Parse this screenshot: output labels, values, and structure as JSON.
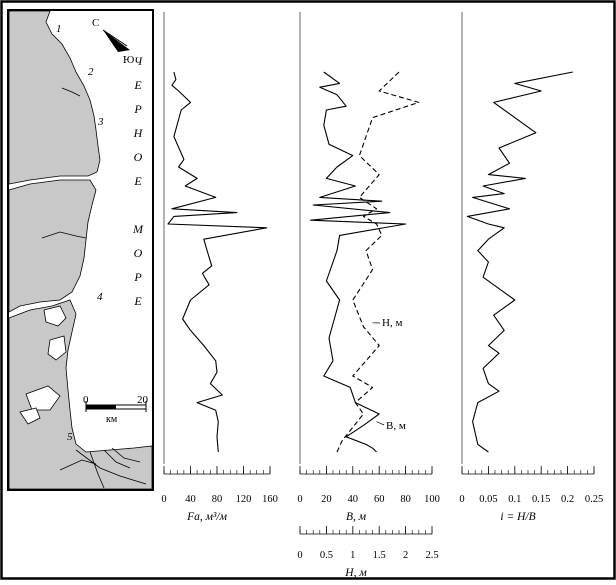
{
  "page_border": true,
  "map": {
    "compass_n": "С",
    "compass_s": "Ю",
    "sea_label": "ЧЕРНОЕ МОРЕ",
    "point_labels": [
      "1",
      "2",
      "3",
      "4",
      "5"
    ],
    "scale_start": "0",
    "scale_end": "20",
    "scale_unit": "км",
    "land_color": "#c8c8c8",
    "sea_color": "#ffffff"
  },
  "chart_data": [
    {
      "type": "line",
      "xlabel": "Fa, м³/м",
      "xlim": [
        0,
        160
      ],
      "xticks": [
        0,
        40,
        80,
        120,
        160
      ],
      "tick_labels": [
        "0",
        "20",
        "40",
        "60",
        "80",
        "100",
        "120",
        "140",
        "160"
      ],
      "y_range": [
        0,
        1
      ],
      "series": [
        {
          "style": "solid",
          "points": [
            [
              15,
              0.0
            ],
            [
              18,
              0.02
            ],
            [
              12,
              0.035
            ],
            [
              22,
              0.05
            ],
            [
              40,
              0.08
            ],
            [
              26,
              0.1
            ],
            [
              15,
              0.17
            ],
            [
              30,
              0.23
            ],
            [
              22,
              0.25
            ],
            [
              50,
              0.28
            ],
            [
              32,
              0.3
            ],
            [
              78,
              0.33
            ],
            [
              12,
              0.36
            ],
            [
              110,
              0.37
            ],
            [
              15,
              0.38
            ],
            [
              6,
              0.4
            ],
            [
              155,
              0.41
            ],
            [
              60,
              0.44
            ],
            [
              65,
              0.47
            ],
            [
              72,
              0.51
            ],
            [
              58,
              0.53
            ],
            [
              68,
              0.56
            ],
            [
              40,
              0.6
            ],
            [
              28,
              0.65
            ],
            [
              40,
              0.68
            ],
            [
              60,
              0.72
            ],
            [
              78,
              0.76
            ],
            [
              80,
              0.79
            ],
            [
              70,
              0.82
            ],
            [
              88,
              0.85
            ],
            [
              50,
              0.87
            ],
            [
              78,
              0.89
            ],
            [
              82,
              0.92
            ],
            [
              80,
              0.96
            ],
            [
              82,
              1.0
            ]
          ]
        }
      ]
    },
    {
      "type": "line",
      "xlabel": "В, м",
      "xlabel2": "Н, м",
      "xlim": [
        0,
        100
      ],
      "xticks": [
        0,
        20,
        40,
        60,
        80,
        100
      ],
      "xlim2": [
        0,
        2.5
      ],
      "xticks2": [
        0,
        0.5,
        1,
        1.5,
        2,
        2.5
      ],
      "y_range": [
        0,
        1
      ],
      "series": [
        {
          "name": "В, м",
          "style": "solid",
          "points": [
            [
              18,
              0.0
            ],
            [
              30,
              0.03
            ],
            [
              15,
              0.04
            ],
            [
              28,
              0.06
            ],
            [
              35,
              0.09
            ],
            [
              20,
              0.1
            ],
            [
              18,
              0.14
            ],
            [
              22,
              0.19
            ],
            [
              40,
              0.22
            ],
            [
              28,
              0.25
            ],
            [
              20,
              0.28
            ],
            [
              42,
              0.3
            ],
            [
              15,
              0.33
            ],
            [
              62,
              0.34
            ],
            [
              10,
              0.35
            ],
            [
              68,
              0.37
            ],
            [
              8,
              0.39
            ],
            [
              80,
              0.4
            ],
            [
              30,
              0.43
            ],
            [
              28,
              0.47
            ],
            [
              20,
              0.55
            ],
            [
              30,
              0.6
            ],
            [
              22,
              0.7
            ],
            [
              25,
              0.76
            ],
            [
              18,
              0.8
            ],
            [
              38,
              0.83
            ],
            [
              42,
              0.87
            ],
            [
              60,
              0.9
            ],
            [
              48,
              0.93
            ],
            [
              35,
              0.96
            ],
            [
              50,
              0.98
            ],
            [
              55,
              0.99
            ],
            [
              58,
              1.0
            ]
          ]
        },
        {
          "name": "Н, м",
          "style": "dashed",
          "points": [
            [
              75,
              0.0
            ],
            [
              60,
              0.05
            ],
            [
              90,
              0.08
            ],
            [
              55,
              0.12
            ],
            [
              45,
              0.22
            ],
            [
              60,
              0.27
            ],
            [
              45,
              0.33
            ],
            [
              58,
              0.36
            ],
            [
              48,
              0.38
            ],
            [
              58,
              0.4
            ],
            [
              62,
              0.43
            ],
            [
              50,
              0.47
            ],
            [
              55,
              0.52
            ],
            [
              40,
              0.6
            ],
            [
              48,
              0.67
            ],
            [
              60,
              0.72
            ],
            [
              50,
              0.76
            ],
            [
              40,
              0.8
            ],
            [
              55,
              0.83
            ],
            [
              42,
              0.87
            ],
            [
              48,
              0.9
            ],
            [
              32,
              0.97
            ],
            [
              28,
              1.0
            ]
          ]
        }
      ],
      "annotations": [
        "Н, м",
        "В, м"
      ]
    },
    {
      "type": "line",
      "xlabel": "i = H/B",
      "xlim": [
        0,
        0.25
      ],
      "xticks": [
        0,
        0.05,
        0.1,
        0.15,
        0.2,
        0.25
      ],
      "y_range": [
        0,
        1
      ],
      "series": [
        {
          "style": "solid",
          "points": [
            [
              0.21,
              0.0
            ],
            [
              0.1,
              0.03
            ],
            [
              0.15,
              0.05
            ],
            [
              0.06,
              0.08
            ],
            [
              0.14,
              0.16
            ],
            [
              0.07,
              0.2
            ],
            [
              0.09,
              0.24
            ],
            [
              0.05,
              0.27
            ],
            [
              0.12,
              0.28
            ],
            [
              0.04,
              0.3
            ],
            [
              0.08,
              0.32
            ],
            [
              0.02,
              0.33
            ],
            [
              0.09,
              0.36
            ],
            [
              0.01,
              0.38
            ],
            [
              0.05,
              0.4
            ],
            [
              0.08,
              0.41
            ],
            [
              0.05,
              0.44
            ],
            [
              0.03,
              0.47
            ],
            [
              0.05,
              0.5
            ],
            [
              0.04,
              0.54
            ],
            [
              0.06,
              0.56
            ],
            [
              0.1,
              0.6
            ],
            [
              0.06,
              0.64
            ],
            [
              0.08,
              0.68
            ],
            [
              0.05,
              0.72
            ],
            [
              0.07,
              0.74
            ],
            [
              0.04,
              0.78
            ],
            [
              0.05,
              0.82
            ],
            [
              0.07,
              0.84
            ],
            [
              0.03,
              0.87
            ],
            [
              0.02,
              0.92
            ],
            [
              0.03,
              0.98
            ],
            [
              0.05,
              1.0
            ]
          ]
        }
      ]
    }
  ]
}
